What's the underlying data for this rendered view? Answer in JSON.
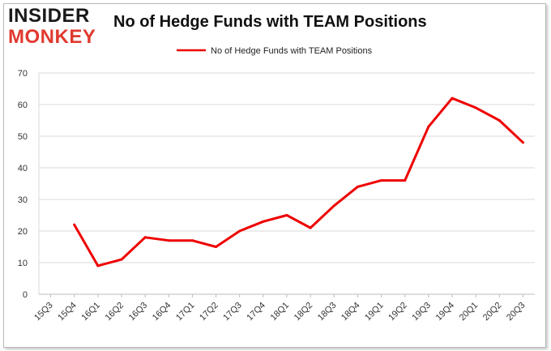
{
  "logo": {
    "line1": "INSIDER",
    "line2": "MONKEY"
  },
  "chart_data": {
    "type": "line",
    "title": "No of Hedge Funds with TEAM Positions",
    "xlabel": "",
    "ylabel": "",
    "categories": [
      "15Q3",
      "15Q4",
      "16Q1",
      "16Q2",
      "16Q3",
      "16Q4",
      "17Q1",
      "17Q2",
      "17Q3",
      "17Q4",
      "18Q1",
      "18Q2",
      "18Q3",
      "18Q4",
      "19Q1",
      "19Q2",
      "19Q3",
      "19Q4",
      "20Q1",
      "20Q2",
      "20Q3"
    ],
    "series": [
      {
        "name": "No of Hedge Funds with TEAM Positions",
        "color": "#ee0000",
        "values": [
          null,
          22,
          9,
          11,
          18,
          17,
          17,
          15,
          20,
          23,
          25,
          21,
          28,
          34,
          36,
          36,
          53,
          62,
          59,
          55,
          48
        ]
      }
    ],
    "ylim": [
      0,
      70
    ],
    "yticks": [
      0,
      10,
      20,
      30,
      40,
      50,
      60,
      70
    ],
    "grid": true,
    "legend": "top-center"
  }
}
